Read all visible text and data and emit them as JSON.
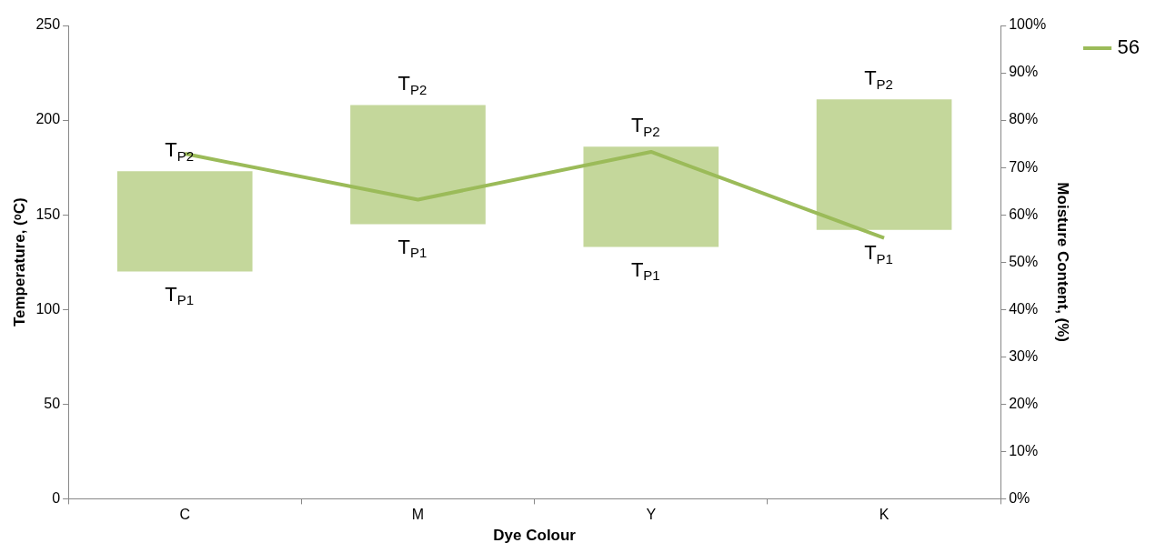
{
  "chart_data": {
    "type": "bar",
    "categories": [
      "C",
      "M",
      "Y",
      "K"
    ],
    "xlabel": "Dye Colour",
    "ylabel": "Temperature, (ᵒC)",
    "y2label": "Moisture Content, (%)",
    "ylim": [
      0,
      250
    ],
    "yticks": [
      0,
      50,
      100,
      150,
      200,
      250
    ],
    "y2lim": [
      0,
      100
    ],
    "y2ticks": [
      {
        "value": 0,
        "label": "0%"
      },
      {
        "value": 10,
        "label": "10%"
      },
      {
        "value": 20,
        "label": "20%"
      },
      {
        "value": 30,
        "label": "30%"
      },
      {
        "value": 40,
        "label": "40%"
      },
      {
        "value": 50,
        "label": "50%"
      },
      {
        "value": 60,
        "label": "60%"
      },
      {
        "value": 70,
        "label": "70%"
      },
      {
        "value": 80,
        "label": "80%"
      },
      {
        "value": 90,
        "label": "90%"
      },
      {
        "value": 100,
        "label": "100%"
      }
    ],
    "grid": false,
    "legend": "top right",
    "series": [
      {
        "color": "#c4d79b",
        "base": [
          120,
          145,
          133,
          142
        ],
        "values": [
          53,
          63,
          53,
          69
        ]
      },
      {
        "type": "line",
        "name": "56",
        "color": "#9bbb59",
        "axis": "y2",
        "marker": "none",
        "line_style": "solid",
        "values": [
          72.9,
          63.2,
          73.3,
          55.1
        ]
      }
    ],
    "annotations": [
      {
        "text": "T$_{P2}$",
        "x": "C",
        "y": 173
      },
      {
        "text": "T$_{P1}$",
        "x": "C",
        "y": 120
      },
      {
        "text": "T$_{P2}$",
        "x": "M",
        "y": 208
      },
      {
        "text": "T$_{P1}$",
        "x": "M",
        "y": 145
      },
      {
        "text": "T$_{P2}$",
        "x": "Y",
        "y": 186
      },
      {
        "text": "T$_{P1}$",
        "x": "Y",
        "y": 133
      },
      {
        "text": "T$_{P2}$",
        "x": "K",
        "y": 211
      },
      {
        "text": "T$_{P1}$",
        "x": "K",
        "y": 142
      }
    ]
  }
}
